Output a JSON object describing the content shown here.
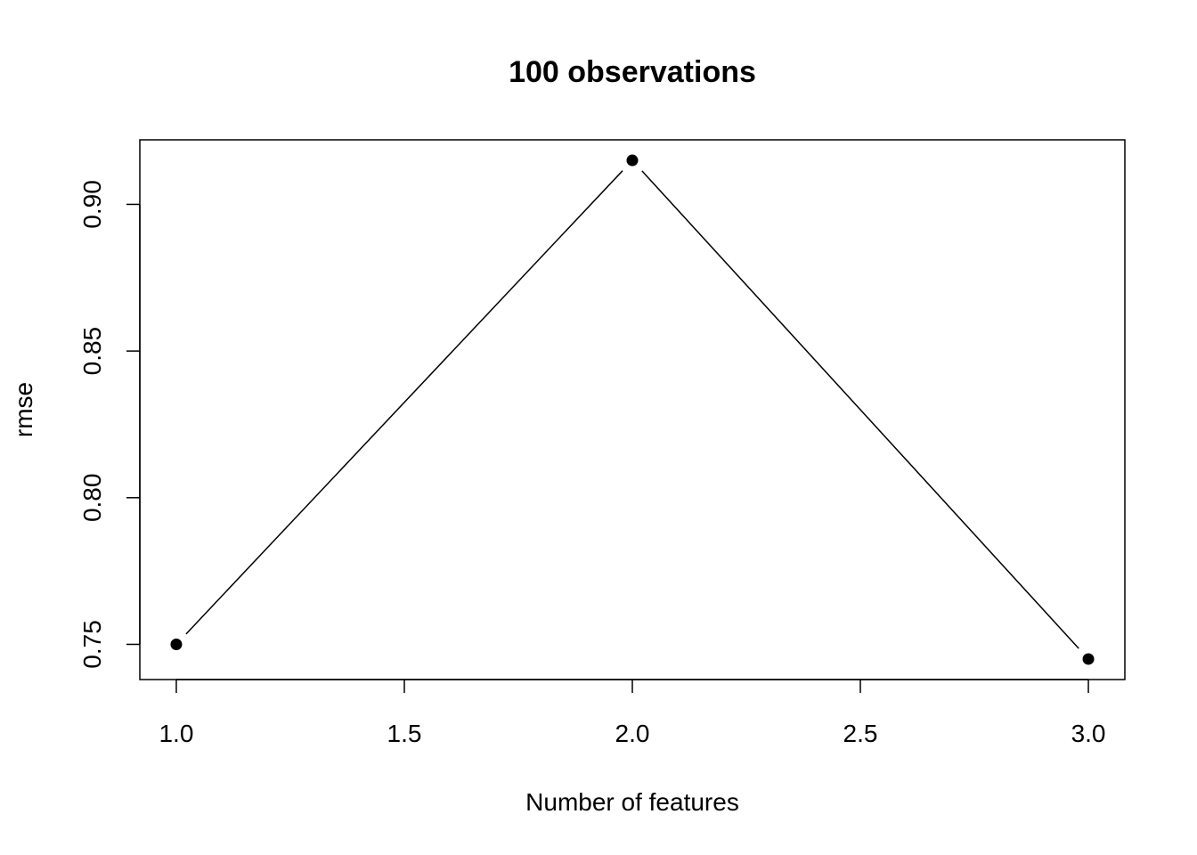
{
  "chart_data": {
    "type": "line",
    "title": "100 observations",
    "xlabel": "Number of features",
    "ylabel": "rmse",
    "x": [
      1.0,
      2.0,
      3.0
    ],
    "series": [
      {
        "values": [
          0.75,
          0.915,
          0.745
        ]
      }
    ],
    "xlim": [
      0.92,
      3.08
    ],
    "ylim": [
      0.738,
      0.922
    ],
    "xticks": [
      1.0,
      1.5,
      2.0,
      2.5,
      3.0
    ],
    "xtick_labels": [
      "1.0",
      "1.5",
      "2.0",
      "2.5",
      "3.0"
    ],
    "yticks": [
      0.75,
      0.8,
      0.85,
      0.9
    ],
    "ytick_labels": [
      "0.75",
      "0.80",
      "0.85",
      "0.90"
    ],
    "grid": false,
    "marker": "filled-circle",
    "line_color": "#000000"
  }
}
